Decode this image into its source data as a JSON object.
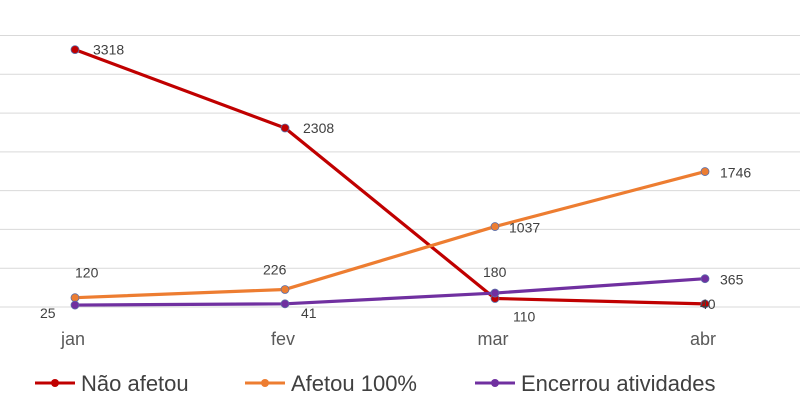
{
  "chart_data": {
    "type": "line",
    "categories": [
      "jan",
      "fev",
      "mar",
      "abr"
    ],
    "ylim": [
      0,
      3700
    ],
    "grid": true,
    "legend_position": "bottom",
    "series": [
      {
        "name": "Não afetou",
        "color": "#c00000",
        "values": [
          3318,
          2308,
          110,
          40
        ]
      },
      {
        "name": "Afetou 100%",
        "color": "#ed7d31",
        "values": [
          120,
          226,
          1037,
          1746
        ]
      },
      {
        "name": "Encerrou atividades",
        "color": "#7030a0",
        "values": [
          25,
          41,
          180,
          365
        ]
      }
    ]
  }
}
